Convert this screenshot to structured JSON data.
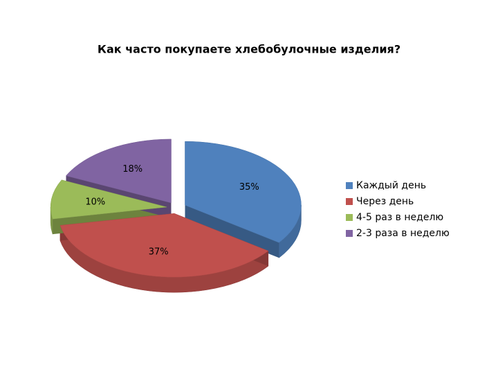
{
  "chart_data": {
    "type": "pie3d",
    "title": "Как часто покупаете хлебобулочные изделия?",
    "categories": [
      "Каждый день",
      "Через день",
      "4-5 раз в неделю",
      "2-3 раза в неделю"
    ],
    "values": [
      35,
      37,
      10,
      18
    ],
    "value_labels": [
      "35%",
      "37%",
      "10%",
      "18%"
    ],
    "colors": [
      "#4f81bd",
      "#c0504d",
      "#9bbb59",
      "#8064a2"
    ],
    "legend": "right"
  }
}
